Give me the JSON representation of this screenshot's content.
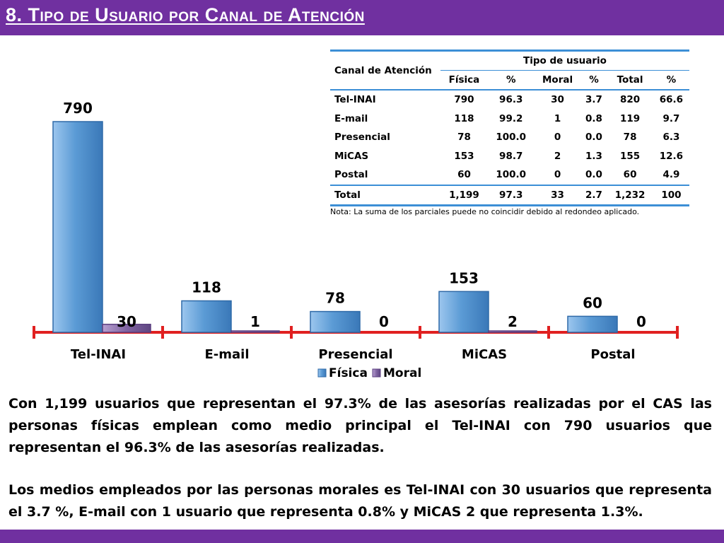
{
  "title": "8. Tipo de Usuario por Canal de Atención",
  "table": {
    "col_canal": "Canal de Atención",
    "col_tipo": "Tipo de usuario",
    "sub_headers": [
      "Física",
      "%",
      "Moral",
      "%",
      "Total",
      "%"
    ],
    "rows": [
      {
        "label": "Tel-INAI",
        "cells": [
          "790",
          "96.3",
          "30",
          "3.7",
          "820",
          "66.6"
        ]
      },
      {
        "label": "E-mail",
        "cells": [
          "118",
          "99.2",
          "1",
          "0.8",
          "119",
          "9.7"
        ]
      },
      {
        "label": "Presencial",
        "cells": [
          "78",
          "100.0",
          "0",
          "0.0",
          "78",
          "6.3"
        ]
      },
      {
        "label": "MiCAS",
        "cells": [
          "153",
          "98.7",
          "2",
          "1.3",
          "155",
          "12.6"
        ]
      },
      {
        "label": "Postal",
        "cells": [
          "60",
          "100.0",
          "0",
          "0.0",
          "60",
          "4.9"
        ]
      }
    ],
    "total": {
      "label": "Total",
      "cells": [
        "1,199",
        "97.3",
        "33",
        "2.7",
        "1,232",
        "100"
      ]
    }
  },
  "note": "Nota: La suma de los parciales puede no coincidir debido al redondeo aplicado.",
  "chart_data": {
    "type": "bar",
    "title": "",
    "xlabel": "",
    "ylabel": "",
    "categories": [
      "Tel-INAI",
      "E-mail",
      "Presencial",
      "MiCAS",
      "Postal"
    ],
    "series": [
      {
        "name": "Física",
        "values": [
          790,
          118,
          78,
          153,
          60
        ],
        "color": "#5b9bd5"
      },
      {
        "name": "Moral",
        "values": [
          30,
          1,
          0,
          2,
          0
        ],
        "color": "#8064a2"
      }
    ],
    "ylim": [
      0,
      790
    ],
    "legend": "bottom-center",
    "axis_color": "#e02020"
  },
  "paragraphs": [
    "Con 1,199 usuarios que representan el 97.3% de las asesorías realizadas por el CAS las personas físicas emplean como medio principal el Tel-INAI con 790 usuarios que representan el 96.3% de las asesorías realizadas.",
    "Los medios empleados por las personas morales es Tel-INAI con 30 usuarios que representa el 3.7 %,  E-mail con 1 usuario que representa 0.8% y MiCAS 2 que representa 1.3%."
  ],
  "colors": {
    "brand": "#7030a0",
    "table_rule": "#3c8fd6"
  }
}
